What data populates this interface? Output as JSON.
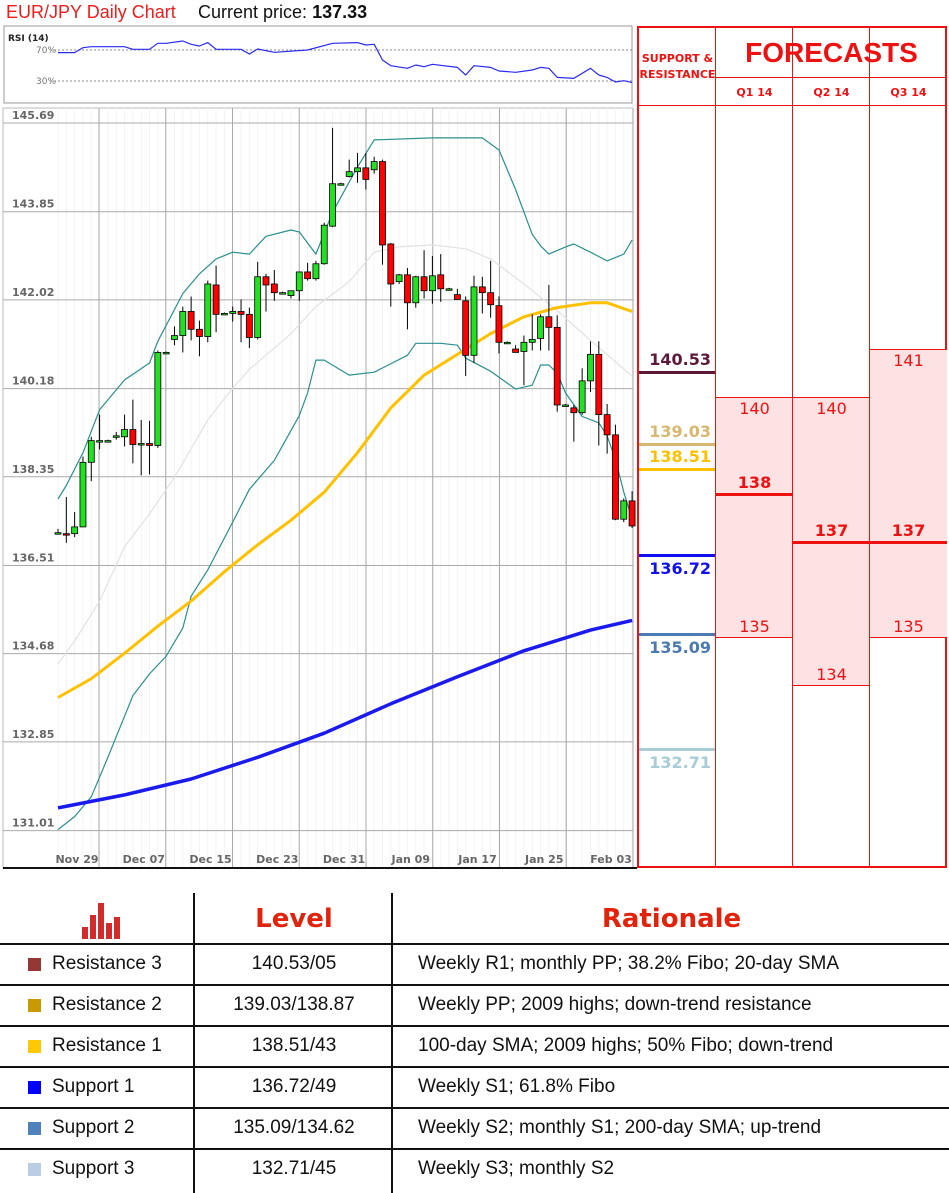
{
  "header": {
    "title": "EUR/JPY Daily Chart",
    "current_price_label": "Current price:",
    "current_price": "137.33"
  },
  "colors": {
    "title": "#ee1c1c",
    "candle_up": "#22e022",
    "candle_down": "#ff0000",
    "bollinger": "#2a8f8f",
    "bollinger_mid": "#e2e2e2",
    "sma100": "#ffc000",
    "sma200": "#1a1aee",
    "rsi": "#2a2aee",
    "forecast": "#ee1111",
    "forecast_fill": "#fde2e3"
  },
  "chart_data": [
    {
      "type": "candlestick",
      "title": "EUR/JPY Daily Chart",
      "ylim": [
        131.01,
        145.69
      ],
      "y_ticks": [
        "145.69",
        "143.85",
        "142.02",
        "140.18",
        "138.35",
        "136.51",
        "134.68",
        "132.85",
        "131.01"
      ],
      "x_ticks": [
        "Nov 29",
        "Dec 07",
        "Dec 15",
        "Dec 23",
        "Dec 31",
        "Jan 09",
        "Jan 17",
        "Jan 25",
        "Feb 03"
      ],
      "grid": true,
      "ohlc": [
        [
          137.19,
          137.27,
          137.15,
          137.19
        ],
        [
          137.17,
          137.93,
          136.98,
          137.15
        ],
        [
          137.17,
          137.62,
          137.1,
          137.31
        ],
        [
          137.31,
          138.77,
          137.31,
          138.65
        ],
        [
          138.65,
          139.18,
          138.26,
          139.1
        ],
        [
          139.1,
          139.64,
          138.92,
          139.1
        ],
        [
          139.1,
          139.12,
          139.08,
          139.1
        ],
        [
          139.18,
          139.28,
          139.12,
          139.2
        ],
        [
          139.18,
          139.64,
          138.98,
          139.33
        ],
        [
          139.33,
          139.95,
          138.63,
          139.02
        ],
        [
          139.02,
          139.53,
          138.38,
          139.04
        ],
        [
          139.04,
          139.51,
          138.4,
          139.0
        ],
        [
          139.0,
          140.97,
          138.95,
          140.93
        ],
        [
          140.93,
          140.95,
          140.91,
          140.93
        ],
        [
          141.2,
          141.47,
          141.08,
          141.28
        ],
        [
          141.28,
          141.88,
          140.93,
          141.78
        ],
        [
          141.78,
          142.09,
          141.18,
          141.41
        ],
        [
          141.41,
          141.59,
          140.85,
          141.26
        ],
        [
          141.26,
          142.42,
          141.14,
          142.35
        ],
        [
          142.33,
          142.73,
          141.35,
          141.72
        ],
        [
          141.74,
          141.76,
          141.72,
          141.74
        ],
        [
          141.74,
          141.88,
          141.57,
          141.78
        ],
        [
          141.78,
          142.03,
          141.14,
          141.72
        ],
        [
          141.72,
          141.86,
          141.02,
          141.24
        ],
        [
          141.24,
          142.81,
          141.2,
          142.5
        ],
        [
          142.5,
          142.56,
          141.78,
          142.33
        ],
        [
          142.35,
          142.64,
          142.0,
          142.17
        ],
        [
          142.17,
          142.19,
          142.15,
          142.17
        ],
        [
          142.11,
          142.21,
          142.05,
          142.21
        ],
        [
          142.21,
          142.6,
          142.0,
          142.6
        ],
        [
          142.6,
          142.79,
          142.42,
          142.46
        ],
        [
          142.46,
          142.83,
          142.42,
          142.77
        ],
        [
          142.77,
          143.62,
          142.75,
          143.57
        ],
        [
          143.55,
          145.59,
          143.53,
          144.43
        ],
        [
          144.43,
          144.45,
          144.41,
          144.43
        ],
        [
          144.58,
          144.93,
          144.56,
          144.68
        ],
        [
          144.68,
          145.07,
          144.45,
          144.76
        ],
        [
          144.76,
          145.07,
          144.31,
          144.52
        ],
        [
          144.72,
          144.99,
          144.64,
          144.89
        ],
        [
          144.89,
          144.93,
          142.75,
          143.16
        ],
        [
          143.18,
          143.2,
          141.88,
          142.35
        ],
        [
          142.4,
          142.56,
          142.35,
          142.54
        ],
        [
          142.54,
          142.68,
          141.41,
          141.96
        ],
        [
          141.96,
          142.52,
          141.86,
          142.5
        ],
        [
          142.5,
          143.05,
          142.05,
          142.21
        ],
        [
          142.21,
          142.93,
          141.94,
          142.52
        ],
        [
          142.54,
          142.97,
          141.98,
          142.25
        ],
        [
          142.25,
          142.27,
          142.23,
          142.25
        ],
        [
          142.13,
          142.25,
          142.03,
          142.03
        ],
        [
          142.0,
          142.09,
          140.44,
          140.87
        ],
        [
          140.87,
          142.52,
          140.71,
          142.29
        ],
        [
          142.29,
          142.5,
          141.74,
          142.17
        ],
        [
          142.17,
          142.83,
          141.65,
          141.92
        ],
        [
          141.9,
          142.09,
          140.91,
          141.14
        ],
        [
          141.14,
          141.16,
          141.12,
          141.14
        ],
        [
          141.0,
          141.08,
          140.93,
          140.93
        ],
        [
          140.95,
          141.28,
          140.25,
          141.14
        ],
        [
          141.14,
          141.72,
          140.97,
          141.2
        ],
        [
          141.22,
          141.72,
          140.97,
          141.67
        ],
        [
          141.67,
          142.33,
          140.97,
          141.45
        ],
        [
          141.45,
          141.7,
          139.7,
          139.84
        ],
        [
          139.84,
          139.86,
          139.82,
          139.84
        ],
        [
          139.78,
          139.84,
          139.08,
          139.68
        ],
        [
          139.68,
          140.6,
          139.64,
          140.34
        ],
        [
          140.34,
          141.16,
          140.11,
          140.89
        ],
        [
          140.89,
          141.16,
          139.0,
          139.64
        ],
        [
          139.64,
          139.86,
          138.83,
          139.22
        ],
        [
          139.22,
          139.43,
          137.45,
          137.47
        ],
        [
          137.47,
          137.9,
          137.41,
          137.85
        ],
        [
          137.85,
          138.05,
          137.29,
          137.33
        ]
      ],
      "overlays": {
        "sma200": [
          131.48,
          null,
          null,
          null,
          null,
          null,
          null,
          null,
          131.75,
          null,
          null,
          null,
          null,
          null,
          null,
          null,
          132.08,
          null,
          null,
          null,
          null,
          null,
          null,
          null,
          132.53,
          null,
          null,
          null,
          null,
          null,
          null,
          null,
          133.03,
          null,
          null,
          null,
          null,
          null,
          null,
          null,
          133.64,
          null,
          null,
          null,
          null,
          null,
          null,
          null,
          134.2,
          null,
          null,
          null,
          null,
          null,
          null,
          null,
          134.74,
          null,
          null,
          null,
          null,
          null,
          null,
          null,
          135.17,
          null,
          null,
          null,
          null,
          135.37
        ],
        "sma100": [
          133.77,
          null,
          null,
          null,
          134.16,
          null,
          null,
          null,
          134.69,
          null,
          null,
          null,
          135.25,
          null,
          null,
          null,
          135.77,
          null,
          null,
          null,
          136.38,
          null,
          null,
          null,
          136.94,
          null,
          null,
          null,
          137.45,
          null,
          null,
          null,
          138.03,
          null,
          null,
          null,
          138.85,
          null,
          null,
          null,
          139.78,
          null,
          null,
          null,
          140.46,
          null,
          null,
          null,
          140.89,
          null,
          null,
          null,
          141.32,
          null,
          null,
          null,
          141.67,
          null,
          null,
          null,
          141.86,
          null,
          null,
          null,
          141.96,
          null,
          141.96,
          null,
          null,
          141.78
        ],
        "bb_upper": [
          137.89,
          138.17,
          null,
          138.85,
          null,
          139.74,
          null,
          null,
          140.36,
          null,
          null,
          140.71,
          141.16,
          null,
          null,
          142.15,
          null,
          142.56,
          null,
          142.87,
          null,
          143.01,
          null,
          142.97,
          null,
          143.34,
          null,
          null,
          143.47,
          143.43,
          null,
          142.97,
          null,
          143.84,
          null,
          null,
          144.78,
          null,
          145.34,
          null,
          null,
          null,
          null,
          null,
          null,
          145.38,
          null,
          null,
          null,
          null,
          null,
          145.38,
          null,
          145.13,
          null,
          144.31,
          null,
          143.38,
          143.14,
          142.97,
          null,
          143.12,
          143.18,
          null,
          143.01,
          null,
          142.83,
          null,
          142.97,
          143.26
        ],
        "bb_mid": [
          134.47,
          null,
          134.94,
          null,
          null,
          135.77,
          null,
          null,
          136.9,
          null,
          null,
          137.58,
          null,
          null,
          138.34,
          null,
          null,
          null,
          139.53,
          null,
          null,
          140.19,
          null,
          140.58,
          null,
          null,
          141.02,
          null,
          141.32,
          null,
          null,
          141.88,
          null,
          null,
          null,
          142.4,
          null,
          null,
          143.01,
          null,
          null,
          143.12,
          null,
          null,
          null,
          143.16,
          null,
          null,
          null,
          143.08,
          null,
          null,
          142.87,
          null,
          null,
          null,
          142.35,
          null,
          null,
          null,
          141.8,
          null,
          null,
          null,
          141.18,
          null,
          null,
          null,
          null,
          140.44
        ],
        "bb_lower": [
          131.03,
          null,
          131.3,
          null,
          131.71,
          null,
          132.53,
          null,
          null,
          133.81,
          null,
          134.26,
          null,
          134.63,
          null,
          135.21,
          135.87,
          null,
          136.42,
          null,
          null,
          137.41,
          null,
          138.09,
          null,
          null,
          138.69,
          null,
          null,
          139.62,
          140.09,
          140.77,
          140.77,
          null,
          null,
          140.46,
          null,
          null,
          140.52,
          null,
          null,
          null,
          140.87,
          141.12,
          null,
          null,
          141.12,
          null,
          141.08,
          140.81,
          null,
          null,
          140.54,
          null,
          null,
          140.17,
          null,
          140.25,
          140.67,
          140.67,
          140.5,
          140.09,
          null,
          139.6,
          null,
          139.47,
          139.2,
          138.71,
          138.03,
          137.47
        ]
      }
    },
    {
      "type": "line",
      "title": "RSI (14)",
      "reference_lines": [
        {
          "value": 70,
          "label": "70%"
        },
        {
          "value": 30,
          "label": "30%"
        }
      ],
      "values": [
        66.6,
        null,
        66.6,
        73.0,
        74.3,
        null,
        null,
        null,
        74.3,
        70.9,
        null,
        70.9,
        78.6,
        78.6,
        null,
        81.6,
        77.3,
        75.2,
        79.5,
        70.9,
        null,
        null,
        70.9,
        64.8,
        71.3,
        null,
        67.0,
        null,
        null,
        null,
        70.0,
        null,
        null,
        78.6,
        null,
        null,
        79.5,
        76.5,
        77.3,
        57.1,
        49.8,
        null,
        46.4,
        50.7,
        48.5,
        51.5,
        null,
        null,
        47.6,
        37.8,
        49.8,
        null,
        47.6,
        42.9,
        null,
        41.2,
        null,
        44.2,
        47.6,
        46.4,
        34.7,
        null,
        33.4,
        null,
        46.4,
        37.8,
        34.7,
        28.7,
        30.4,
        27.9
      ]
    }
  ],
  "forecast_panel": {
    "sr_header": "SUPPORT & RESISTANCE",
    "forecast_header": "FORECASTS",
    "levels": [
      {
        "value": "140.53",
        "color": "#5c1a3a",
        "label_pos": "above"
      },
      {
        "value": "139.03",
        "color": "#d8b870",
        "label_pos": "above"
      },
      {
        "value": "138.51",
        "color": "#ffc000",
        "label_pos": "above"
      },
      {
        "value": "136.72",
        "color": "#1010ee",
        "label_pos": "below"
      },
      {
        "value": "135.09",
        "color": "#4a7ab0",
        "label_pos": "below"
      },
      {
        "value": "132.71",
        "color": "#a8cbd8",
        "label_pos": "below"
      }
    ],
    "quarters": [
      {
        "label": "Q1 14",
        "high": "140",
        "mid": "138",
        "low": "135"
      },
      {
        "label": "Q2 14",
        "high": "140",
        "mid": "137",
        "low": "134"
      },
      {
        "label": "Q3 14",
        "high": "141",
        "mid": "137",
        "low": "135"
      }
    ]
  },
  "table": {
    "headers": {
      "level": "Level",
      "rationale": "Rationale"
    },
    "icon": "bar-chart-icon",
    "rows": [
      {
        "name": "Resistance 3",
        "level": "140.53/05",
        "rationale": "Weekly R1; monthly PP; 38.2% Fibo; 20-day SMA",
        "color": "#953735"
      },
      {
        "name": "Resistance 2",
        "level": "139.03/138.87",
        "rationale": "Weekly PP; 2009 highs; down-trend resistance",
        "color": "#c99a00"
      },
      {
        "name": "Resistance 1",
        "level": "138.51/43",
        "rationale": "100-day SMA; 2009 highs; 50% Fibo; down-trend",
        "color": "#ffc800"
      },
      {
        "name": "Support 1",
        "level": "136.72/49",
        "rationale": "Weekly S1; 61.8% Fibo",
        "color": "#0000ff"
      },
      {
        "name": "Support 2",
        "level": "135.09/134.62",
        "rationale": "Weekly S2; monthly S1; 200-day SMA; up-trend",
        "color": "#4f81bd"
      },
      {
        "name": "Support 3",
        "level": "132.71/45",
        "rationale": "Weekly S3; monthly S2",
        "color": "#b9cde5"
      }
    ]
  }
}
